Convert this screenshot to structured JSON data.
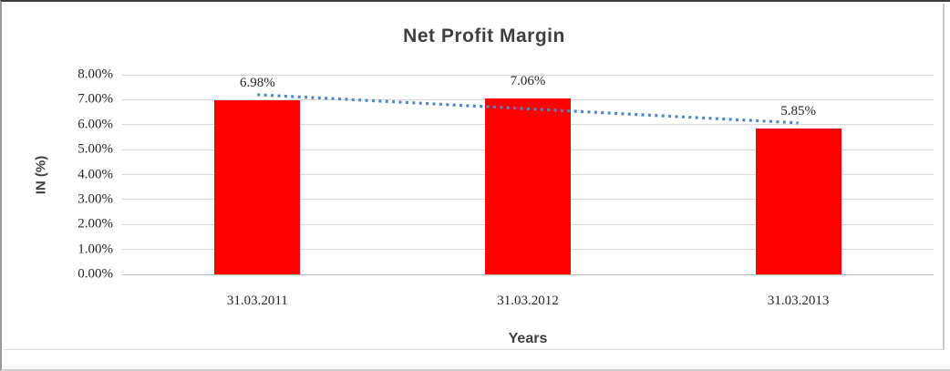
{
  "chart_data": {
    "type": "bar",
    "title": "Net Profit Margin",
    "xlabel": "Years",
    "ylabel": "IN (%)",
    "categories": [
      "31.03.2011",
      "31.03.2012",
      "31.03.2013"
    ],
    "values": [
      6.98,
      7.06,
      5.85
    ],
    "data_labels": [
      "6.98%",
      "7.06%",
      "5.85%"
    ],
    "ylim": [
      0,
      8
    ],
    "ytick_labels": [
      "0.00%",
      "1.00%",
      "2.00%",
      "3.00%",
      "4.00%",
      "5.00%",
      "6.00%",
      "7.00%",
      "8.00%"
    ],
    "grid": true,
    "legend": "none",
    "bar_color": "#ff0000",
    "gridline_color": "#d9d9d9",
    "axis_color": "#b7b7b7",
    "title_color": "#3f3f3f",
    "tick_color": "#262626",
    "trendline": {
      "type": "linear",
      "style": "dotted",
      "color": "#4f86c6",
      "start_value": 7.2,
      "end_value": 6.07
    }
  }
}
